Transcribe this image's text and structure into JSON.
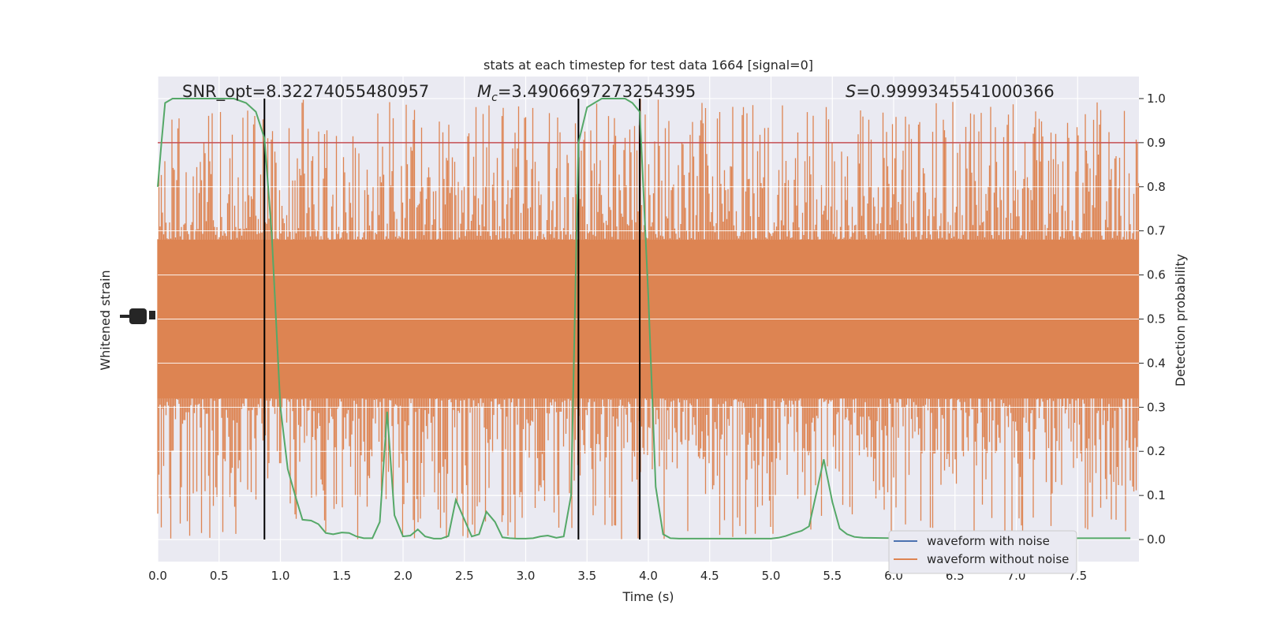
{
  "chart_data": {
    "type": "line",
    "title": "stats at each timestep for test data 1664 [signal=0]",
    "xlabel": "Time (s)",
    "ylabel_left": "Whitened strain",
    "ylabel_right": "Detection probability",
    "xlim": [
      0.0,
      8.0
    ],
    "ylim_right": [
      -0.05,
      1.05
    ],
    "x_ticks": [
      "0.0",
      "0.5",
      "1.0",
      "1.5",
      "2.0",
      "2.5",
      "3.0",
      "3.5",
      "4.0",
      "4.5",
      "5.0",
      "5.5",
      "6.0",
      "6.5",
      "7.0",
      "7.5"
    ],
    "x_tick_values": [
      0.0,
      0.5,
      1.0,
      1.5,
      2.0,
      2.5,
      3.0,
      3.5,
      4.0,
      4.5,
      5.0,
      5.5,
      6.0,
      6.5,
      7.0,
      7.5
    ],
    "y_right_ticks": [
      "0.0",
      "0.1",
      "0.2",
      "0.3",
      "0.4",
      "0.5",
      "0.6",
      "0.7",
      "0.8",
      "0.9",
      "1.0"
    ],
    "y_right_tick_values": [
      0.0,
      0.1,
      0.2,
      0.3,
      0.4,
      0.5,
      0.6,
      0.7,
      0.8,
      0.9,
      1.0
    ],
    "annotations": {
      "snr_text": "SNR_opt=8.32274055480957",
      "mc_symbol": "M",
      "mc_sub": "c",
      "mc_value": "=3.4906697273254395",
      "s_symbol": "S",
      "s_value": "=0.9999345541000366"
    },
    "threshold": {
      "value": 0.9,
      "color": "#c44e52"
    },
    "vertical_lines": [
      0.87,
      3.43,
      3.93
    ],
    "detection_probability": {
      "color": "#55a868",
      "x": [
        0.0,
        0.03,
        0.06,
        0.12,
        0.18,
        0.25,
        0.37,
        0.5,
        0.62,
        0.72,
        0.8,
        0.87,
        0.93,
        1.0,
        1.06,
        1.12,
        1.18,
        1.25,
        1.31,
        1.37,
        1.43,
        1.5,
        1.56,
        1.62,
        1.68,
        1.75,
        1.81,
        1.87,
        1.93,
        2.0,
        2.06,
        2.12,
        2.18,
        2.25,
        2.31,
        2.37,
        2.43,
        2.5,
        2.56,
        2.62,
        2.68,
        2.75,
        2.81,
        2.87,
        2.93,
        3.0,
        3.06,
        3.12,
        3.18,
        3.25,
        3.31,
        3.37,
        3.43,
        3.5,
        3.56,
        3.62,
        3.68,
        3.75,
        3.81,
        3.87,
        3.93,
        4.0,
        4.06,
        4.12,
        4.18,
        4.25,
        4.5,
        4.75,
        5.0,
        5.06,
        5.12,
        5.18,
        5.25,
        5.31,
        5.37,
        5.43,
        5.5,
        5.56,
        5.62,
        5.68,
        5.75,
        6.0,
        6.5,
        7.0,
        7.5,
        7.75,
        7.93
      ],
      "y": [
        0.8,
        0.9,
        0.99,
        1.0,
        1.0,
        1.0,
        1.0,
        1.0,
        1.0,
        0.99,
        0.97,
        0.91,
        0.69,
        0.3,
        0.16,
        0.1,
        0.045,
        0.043,
        0.035,
        0.015,
        0.012,
        0.016,
        0.015,
        0.007,
        0.003,
        0.003,
        0.04,
        0.29,
        0.055,
        0.007,
        0.009,
        0.023,
        0.007,
        0.002,
        0.002,
        0.008,
        0.09,
        0.045,
        0.007,
        0.012,
        0.063,
        0.04,
        0.005,
        0.003,
        0.002,
        0.002,
        0.003,
        0.007,
        0.009,
        0.004,
        0.007,
        0.1,
        0.9,
        0.98,
        0.99,
        1.0,
        1.0,
        1.0,
        1.0,
        0.99,
        0.97,
        0.55,
        0.12,
        0.012,
        0.003,
        0.002,
        0.002,
        0.002,
        0.002,
        0.004,
        0.008,
        0.014,
        0.02,
        0.03,
        0.105,
        0.182,
        0.085,
        0.025,
        0.012,
        0.006,
        0.004,
        0.003,
        0.003,
        0.003,
        0.003,
        0.003,
        0.003
      ]
    },
    "strain_band": {
      "color": "#dd8452",
      "center": 0.5,
      "core_half_width": 0.1
    },
    "legend": {
      "placement": "lower-right",
      "entries": [
        {
          "label": "waveform with noise",
          "color": "#4c72b0"
        },
        {
          "label": "waveform without noise",
          "color": "#dd8452"
        }
      ]
    },
    "grid": true,
    "background_color": "#eaeaf2"
  }
}
